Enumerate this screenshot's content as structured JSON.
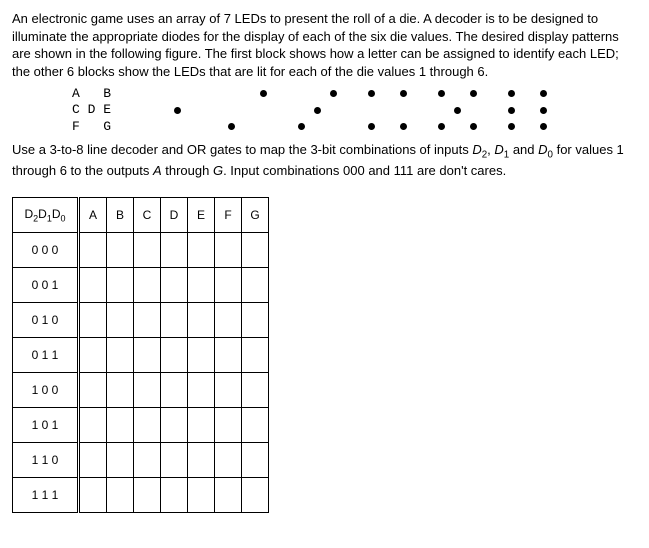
{
  "intro": "An electronic game uses an array of 7 LEDs to present the roll of a die. A decoder is to be designed to illuminate the appropriate diodes for the display of each of the six die values. The desired display patterns are shown in the following figure. The first block shows how a letter can be assigned to identify each LED; the other 6 blocks show the LEDs that are lit for each of the die values 1 through 6.",
  "label_block_rows": [
    "A   B",
    "C D E",
    "F   G"
  ],
  "led_positions": {
    "A": [
      "r1",
      "c1"
    ],
    "B": [
      "r1",
      "c3"
    ],
    "C": [
      "r2",
      "c1"
    ],
    "D": [
      "r2",
      "c2"
    ],
    "E": [
      "r2",
      "c3"
    ],
    "F": [
      "r3",
      "c1"
    ],
    "G": [
      "r3",
      "c3"
    ]
  },
  "dice": [
    {
      "value": 1,
      "lit": [
        "D"
      ]
    },
    {
      "value": 2,
      "lit": [
        "B",
        "F"
      ]
    },
    {
      "value": 3,
      "lit": [
        "B",
        "D",
        "F"
      ]
    },
    {
      "value": 4,
      "lit": [
        "A",
        "B",
        "F",
        "G"
      ]
    },
    {
      "value": 5,
      "lit": [
        "A",
        "B",
        "D",
        "F",
        "G"
      ]
    },
    {
      "value": 6,
      "lit": [
        "A",
        "B",
        "C",
        "E",
        "F",
        "G"
      ]
    }
  ],
  "mid_para_html": "Use a 3-to-8 line decoder and OR gates to map the 3-bit combinations of inputs <i>D</i><sub>2</sub>, <i>D</i><sub>1</sub> and <i>D</i><sub>0</sub> for values 1 through 6 to the outputs <i>A</i> through <i>G</i>. Input combinations 000 and 111 are don't cares.",
  "table": {
    "input_header_html": "D<sub>2</sub>D<sub>1</sub>D<sub>0</sub>",
    "output_headers": [
      "A",
      "B",
      "C",
      "D",
      "E",
      "F",
      "G"
    ],
    "rows": [
      "0 0 0",
      "0 0 1",
      "0 1 0",
      "0 1 1",
      "1 0 0",
      "1 0 1",
      "1 1 0",
      "1 1 1"
    ]
  },
  "colors": {
    "text": "#000000",
    "background": "#ffffff",
    "border": "#000000"
  }
}
